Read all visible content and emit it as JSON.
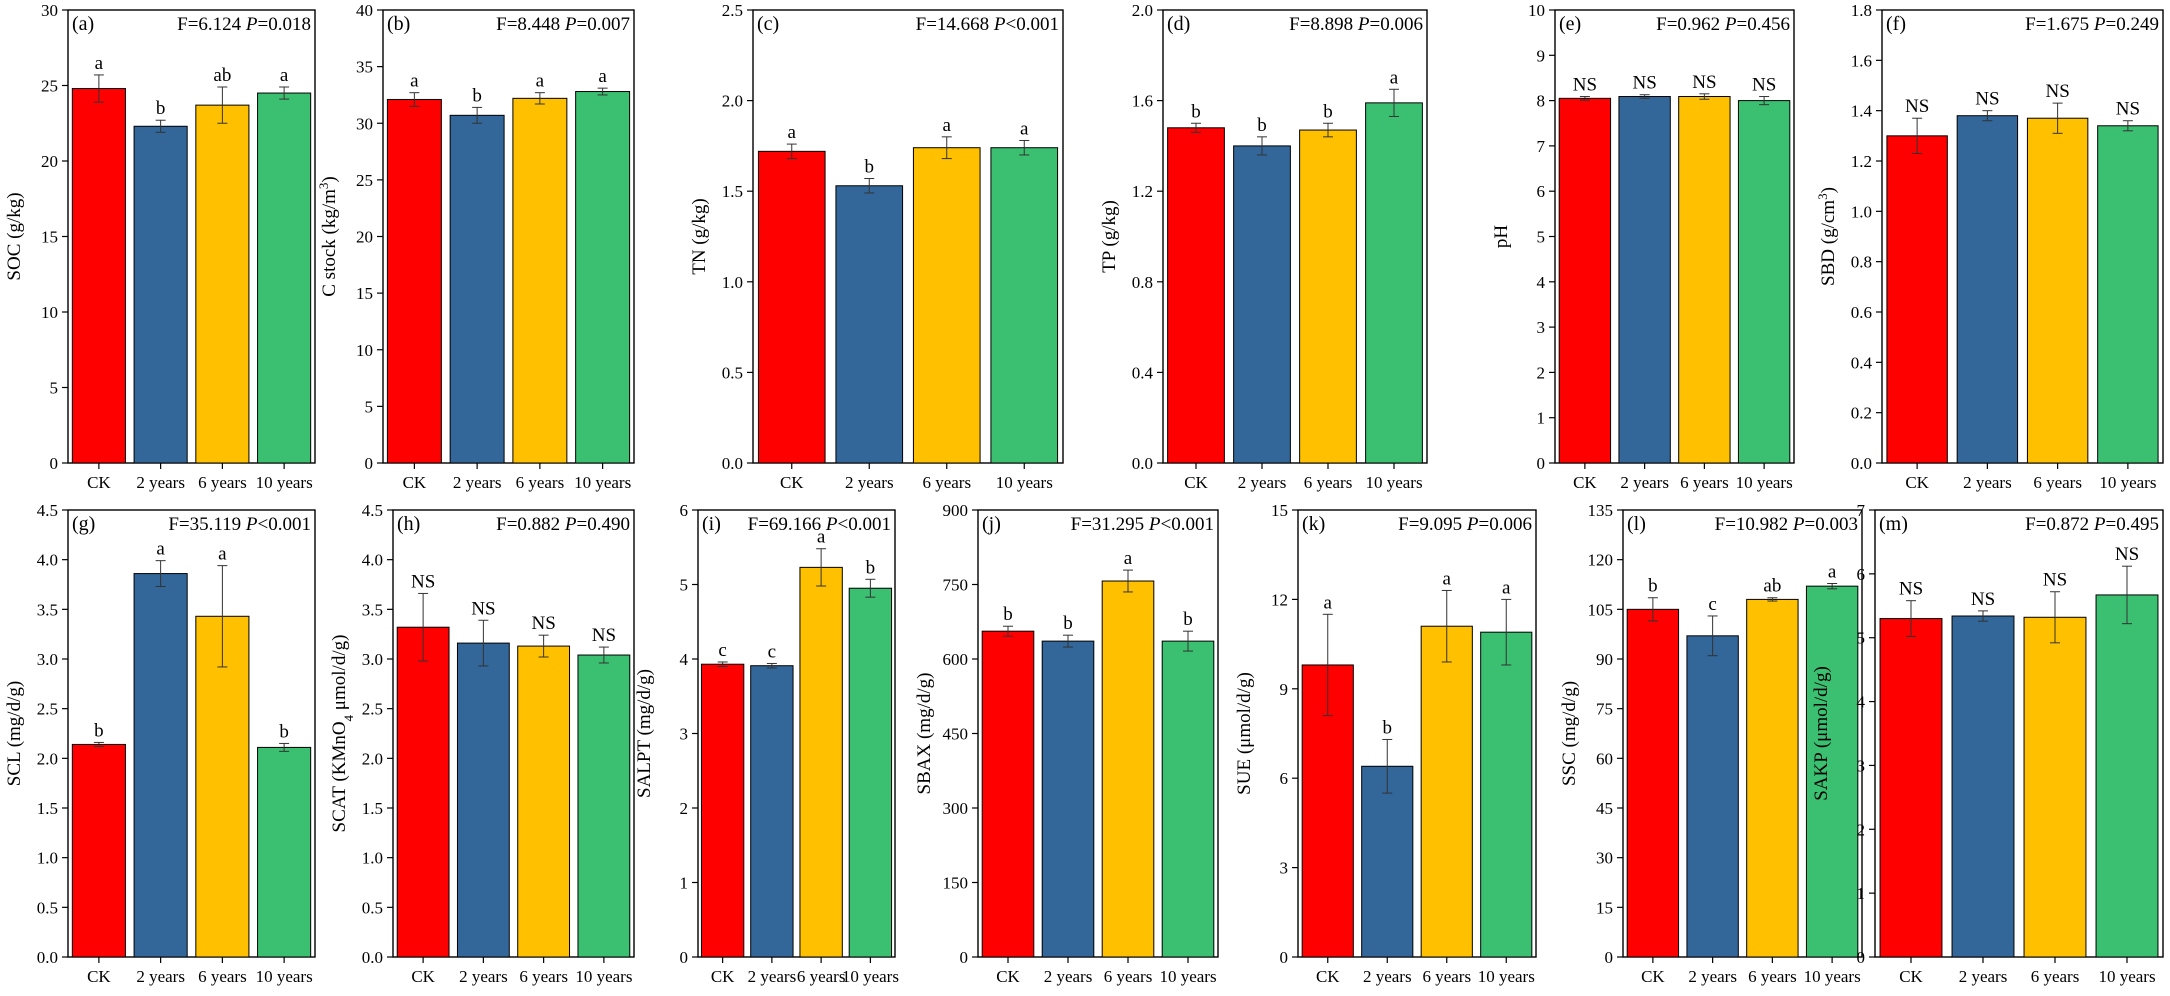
{
  "colors": {
    "ck": "#ff0000",
    "y2": "#336699",
    "y6": "#ffc000",
    "y10": "#3bbf70"
  },
  "chart_data": [
    {
      "type": "bar",
      "panel": "(a)",
      "categories": [
        "CK",
        "2 years",
        "6 years",
        "10 years"
      ],
      "values": [
        24.8,
        22.3,
        23.7,
        24.5
      ],
      "errors": [
        0.9,
        0.4,
        1.2,
        0.4
      ],
      "letters": [
        "a",
        "b",
        "ab",
        "a"
      ],
      "ylabel": "SOC (g/kg)",
      "ylabel_sup": "",
      "ylabel_post": "",
      "ylim": [
        0,
        30
      ],
      "yticks": [
        "0",
        "5",
        "10",
        "15",
        "20",
        "25",
        "30"
      ],
      "stat_f": "F=6.124",
      "stat_p_label": "P",
      "stat_p_value": "=0.018"
    },
    {
      "type": "bar",
      "panel": "(b)",
      "categories": [
        "CK",
        "2 years",
        "6 years",
        "10 years"
      ],
      "values": [
        32.1,
        30.7,
        32.2,
        32.8
      ],
      "errors": [
        0.6,
        0.7,
        0.5,
        0.3
      ],
      "letters": [
        "a",
        "b",
        "a",
        "a"
      ],
      "ylabel": "C stock (kg/m",
      "ylabel_sup": "3",
      "ylabel_post": ")",
      "ylim": [
        0,
        40
      ],
      "yticks": [
        "0",
        "5",
        "10",
        "15",
        "20",
        "25",
        "30",
        "35",
        "40"
      ],
      "stat_f": "F=8.448",
      "stat_p_label": "P",
      "stat_p_value": "=0.007"
    },
    {
      "type": "bar",
      "panel": "(c)",
      "categories": [
        "CK",
        "2 years",
        "6 years",
        "10 years"
      ],
      "values": [
        1.72,
        1.53,
        1.74,
        1.74
      ],
      "errors": [
        0.04,
        0.04,
        0.06,
        0.04
      ],
      "letters": [
        "a",
        "b",
        "a",
        "a"
      ],
      "ylabel": "TN (g/kg)",
      "ylabel_sup": "",
      "ylabel_post": "",
      "ylim": [
        0,
        2.5
      ],
      "yticks": [
        "0.0",
        "0.5",
        "1.0",
        "1.5",
        "2.0",
        "2.5"
      ],
      "stat_f": "F=14.668",
      "stat_p_label": "P",
      "stat_p_value": "<0.001"
    },
    {
      "type": "bar",
      "panel": "(d)",
      "categories": [
        "CK",
        "2 years",
        "6 years",
        "10 years"
      ],
      "values": [
        1.48,
        1.4,
        1.47,
        1.59
      ],
      "errors": [
        0.02,
        0.04,
        0.03,
        0.06
      ],
      "letters": [
        "b",
        "b",
        "b",
        "a"
      ],
      "ylabel": "TP (g/kg)",
      "ylabel_sup": "",
      "ylabel_post": "",
      "ylim": [
        0,
        2.0
      ],
      "yticks": [
        "0.0",
        "0.4",
        "0.8",
        "1.2",
        "1.6",
        "2.0"
      ],
      "stat_f": "F=8.898",
      "stat_p_label": "P",
      "stat_p_value": "=0.006"
    },
    {
      "type": "bar",
      "panel": "(e)",
      "categories": [
        "CK",
        "2 years",
        "6 years",
        "10 years"
      ],
      "values": [
        8.05,
        8.09,
        8.09,
        8.0
      ],
      "errors": [
        0.04,
        0.04,
        0.06,
        0.09
      ],
      "letters": [
        "NS",
        "NS",
        "NS",
        "NS"
      ],
      "ylabel": "pH",
      "ylabel_sup": "",
      "ylabel_post": "",
      "ylim": [
        0,
        10
      ],
      "yticks": [
        "0",
        "1",
        "2",
        "3",
        "4",
        "5",
        "6",
        "7",
        "8",
        "9",
        "10"
      ],
      "stat_f": "F=0.962",
      "stat_p_label": "P",
      "stat_p_value": "=0.456"
    },
    {
      "type": "bar",
      "panel": "(f)",
      "categories": [
        "CK",
        "2 years",
        "6 years",
        "10 years"
      ],
      "values": [
        1.3,
        1.38,
        1.37,
        1.34
      ],
      "errors": [
        0.07,
        0.02,
        0.06,
        0.02
      ],
      "letters": [
        "NS",
        "NS",
        "NS",
        "NS"
      ],
      "ylabel": "SBD (g/cm",
      "ylabel_sup": "3",
      "ylabel_post": ")",
      "ylim": [
        0,
        1.8
      ],
      "yticks": [
        "0.0",
        "0.2",
        "0.4",
        "0.6",
        "0.8",
        "1.0",
        "1.2",
        "1.4",
        "1.6",
        "1.8"
      ],
      "stat_f": "F=1.675",
      "stat_p_label": "P",
      "stat_p_value": "=0.249"
    },
    {
      "type": "bar",
      "panel": "(g)",
      "categories": [
        "CK",
        "2 years",
        "6 years",
        "10 years"
      ],
      "values": [
        2.14,
        3.86,
        3.43,
        2.11
      ],
      "errors": [
        0.02,
        0.13,
        0.51,
        0.04
      ],
      "letters": [
        "b",
        "a",
        "a",
        "b"
      ],
      "ylabel": "SCL (mg/d/g)",
      "ylabel_sup": "",
      "ylabel_post": "",
      "ylim": [
        0,
        4.5
      ],
      "yticks": [
        "0.0",
        "0.5",
        "1.0",
        "1.5",
        "2.0",
        "2.5",
        "3.0",
        "3.5",
        "4.0",
        "4.5"
      ],
      "stat_f": "F=35.119",
      "stat_p_label": "P",
      "stat_p_value": "<0.001"
    },
    {
      "type": "bar",
      "panel": "(h)",
      "categories": [
        "CK",
        "2 years",
        "6 years",
        "10 years"
      ],
      "values": [
        3.32,
        3.16,
        3.13,
        3.04
      ],
      "errors": [
        0.34,
        0.23,
        0.11,
        0.08
      ],
      "letters": [
        "NS",
        "NS",
        "NS",
        "NS"
      ],
      "ylabel": "SCAT (KMnO",
      "ylabel_sub": "4",
      "ylabel_post": " μmol/d/g)",
      "ylim": [
        0,
        4.5
      ],
      "yticks": [
        "0.0",
        "0.5",
        "1.0",
        "1.5",
        "2.0",
        "2.5",
        "3.0",
        "3.5",
        "4.0",
        "4.5"
      ],
      "stat_f": "F=0.882",
      "stat_p_label": "P",
      "stat_p_value": "=0.490"
    },
    {
      "type": "bar",
      "panel": "(i)",
      "categories": [
        "CK",
        "2 years",
        "6 years",
        "10 years"
      ],
      "values": [
        3.93,
        3.91,
        5.23,
        4.95
      ],
      "errors": [
        0.03,
        0.03,
        0.25,
        0.12
      ],
      "letters": [
        "c",
        "c",
        "a",
        "b"
      ],
      "ylabel": "SALPT (mg/d/g)",
      "ylabel_sup": "",
      "ylabel_post": "",
      "ylim": [
        0,
        6
      ],
      "yticks": [
        "0",
        "1",
        "2",
        "3",
        "4",
        "5",
        "6"
      ],
      "stat_f": "F=69.166",
      "stat_p_label": "P",
      "stat_p_value": "<0.001"
    },
    {
      "type": "bar",
      "panel": "(j)",
      "categories": [
        "CK",
        "2 years",
        "6 years",
        "10 years"
      ],
      "values": [
        656,
        636,
        757,
        636
      ],
      "errors": [
        10,
        12,
        22,
        20
      ],
      "letters": [
        "b",
        "b",
        "a",
        "b"
      ],
      "ylabel": "SBAX (mg/d/g)",
      "ylabel_sup": "",
      "ylabel_post": "",
      "ylim": [
        0,
        900
      ],
      "yticks": [
        "0",
        "150",
        "300",
        "450",
        "600",
        "750",
        "900"
      ],
      "stat_f": "F=31.295",
      "stat_p_label": "P",
      "stat_p_value": "<0.001"
    },
    {
      "type": "bar",
      "panel": "(k)",
      "categories": [
        "CK",
        "2 years",
        "6 years",
        "10 years"
      ],
      "values": [
        9.8,
        6.4,
        11.1,
        10.9
      ],
      "errors": [
        1.7,
        0.9,
        1.2,
        1.1
      ],
      "letters": [
        "a",
        "b",
        "a",
        "a"
      ],
      "ylabel": "SUE (μmol/d/g)",
      "ylabel_sup": "",
      "ylabel_post": "",
      "ylim": [
        0,
        15
      ],
      "yticks": [
        "0",
        "3",
        "6",
        "9",
        "12",
        "15"
      ],
      "stat_f": "F=9.095",
      "stat_p_label": "P",
      "stat_p_value": "=0.006"
    },
    {
      "type": "bar",
      "panel": "(l)",
      "categories": [
        "CK",
        "2 years",
        "6 years",
        "10 years"
      ],
      "values": [
        105,
        97,
        108,
        112
      ],
      "errors": [
        3.5,
        6,
        0.5,
        0.8
      ],
      "letters": [
        "b",
        "c",
        "ab",
        "a"
      ],
      "ylabel": "SSC (mg/d/g)",
      "ylabel_sup": "",
      "ylabel_post": "",
      "ylim": [
        0,
        135
      ],
      "yticks": [
        "0",
        "15",
        "30",
        "45",
        "60",
        "75",
        "90",
        "105",
        "120",
        "135"
      ],
      "stat_f": "F=10.982",
      "stat_p_label": "P",
      "stat_p_value": "=0.003"
    },
    {
      "type": "bar",
      "panel": "(m)",
      "categories": [
        "CK",
        "2 years",
        "6 years",
        "10 years"
      ],
      "values": [
        5.3,
        5.34,
        5.32,
        5.67
      ],
      "errors": [
        0.28,
        0.08,
        0.4,
        0.45
      ],
      "letters": [
        "NS",
        "NS",
        "NS",
        "NS"
      ],
      "ylabel": "SAKP  (μmol/d/g)",
      "ylabel_sup": "",
      "ylabel_post": "",
      "ylim": [
        0,
        7
      ],
      "yticks": [
        "0",
        "1",
        "2",
        "3",
        "4",
        "5",
        "6",
        "7"
      ],
      "stat_f": "F=0.872",
      "stat_p_label": "P",
      "stat_p_value": "=0.495"
    }
  ]
}
